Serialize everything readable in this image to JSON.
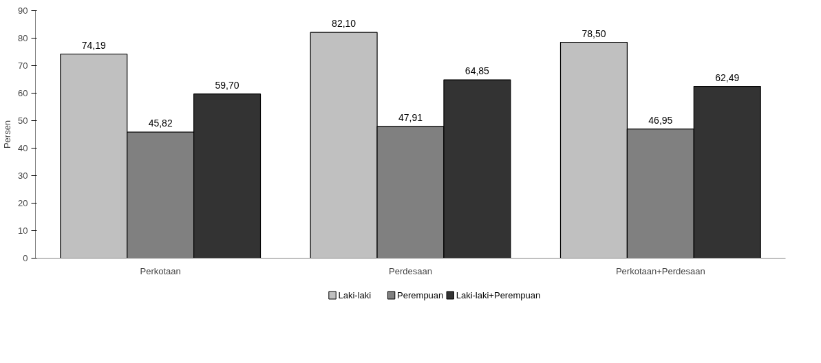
{
  "chart_data": {
    "type": "bar",
    "ylabel": "Persen",
    "categories": [
      "Perkotaan",
      "Perdesaan",
      "Perkotaan+Perdesaan"
    ],
    "series": [
      {
        "name": "Laki-laki",
        "color": "#c0c0c0",
        "values": [
          74.19,
          82.1,
          78.5
        ],
        "value_labels": [
          "74,19",
          "82,10",
          "78,50"
        ]
      },
      {
        "name": "Perempuan",
        "color": "#808080",
        "values": [
          45.82,
          47.91,
          46.95
        ],
        "value_labels": [
          "45,82",
          "47,91",
          "46,95"
        ]
      },
      {
        "name": "Laki-laki+Perempuan",
        "color": "#333333",
        "values": [
          59.7,
          64.85,
          62.49
        ],
        "value_labels": [
          "59,70",
          "64,85",
          "62,49"
        ]
      }
    ],
    "ylim": [
      0,
      90
    ],
    "yticks": [
      0,
      10,
      20,
      30,
      40,
      50,
      60,
      70,
      80,
      90
    ],
    "grid": false,
    "legend": "bottom"
  }
}
